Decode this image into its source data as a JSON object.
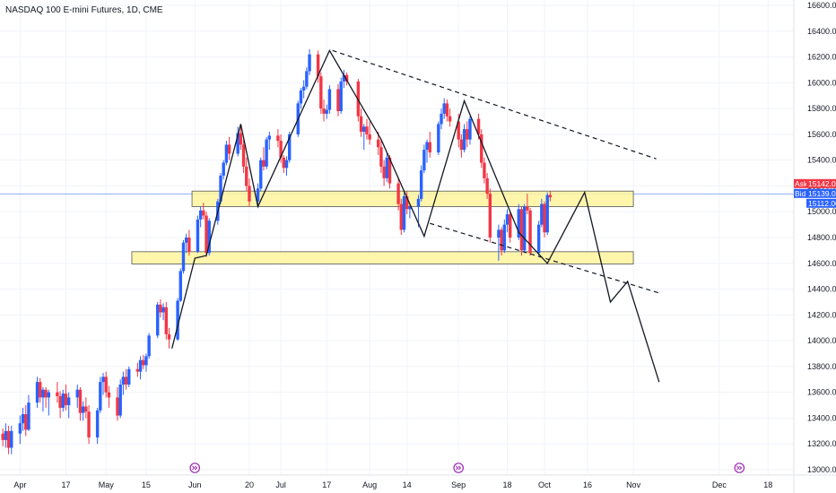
{
  "header": {
    "title": "NASDAQ 100 E-mini Futures, 1D, CME"
  },
  "quotes": {
    "ask_label": "Ask",
    "ask_price": "15142.00",
    "bid_label": "Bid",
    "bid_price": "15139.00",
    "last_price": "15112.00",
    "colors": {
      "ask": "#f23645",
      "bid": "#2962ff",
      "last": "#2962ff"
    }
  },
  "chart_data": {
    "type": "candlestick",
    "title": "NASDAQ 100 E-mini Futures, 1D, CME",
    "x_ticks": [
      {
        "label": "Apr",
        "day": 0
      },
      {
        "label": "17",
        "day": 16
      },
      {
        "label": "May",
        "day": 30
      },
      {
        "label": "15",
        "day": 44
      },
      {
        "label": "Jun",
        "day": 61
      },
      {
        "label": "20",
        "day": 80
      },
      {
        "label": "Jul",
        "day": 91
      },
      {
        "label": "17",
        "day": 107
      },
      {
        "label": "Aug",
        "day": 122
      },
      {
        "label": "14",
        "day": 135
      },
      {
        "label": "Sep",
        "day": 153
      },
      {
        "label": "18",
        "day": 170
      },
      {
        "label": "Oct",
        "day": 183
      },
      {
        "label": "16",
        "day": 198
      },
      {
        "label": "Nov",
        "day": 214
      },
      {
        "label": "Dec",
        "day": 244
      },
      {
        "label": "18",
        "day": 261
      }
    ],
    "x_range_days": [
      -7,
      270
    ],
    "y_ticks": [
      13000,
      13200,
      13400,
      13600,
      13800,
      14000,
      14200,
      14400,
      14600,
      14800,
      15000,
      15200,
      15400,
      15600,
      15800,
      16000,
      16200,
      16400,
      16600
    ],
    "ylim": [
      12950,
      16650
    ],
    "grid": true,
    "colors": {
      "up": "#2962ff",
      "down": "#f23645",
      "zone_fill": "#fff59d",
      "zone_border": "#555555",
      "price_line": "#2962ff"
    },
    "price_line": 15139,
    "zones": [
      {
        "from_day": 60,
        "to_day": 214,
        "low": 15040,
        "high": 15160
      },
      {
        "from_day": 39,
        "to_day": 214,
        "low": 14595,
        "high": 14690
      }
    ],
    "swing_path": [
      [
        53,
        13940
      ],
      [
        61,
        14640
      ],
      [
        65,
        14660
      ],
      [
        77,
        15680
      ],
      [
        83,
        15040
      ],
      [
        108,
        16250
      ],
      [
        126,
        15560
      ],
      [
        141,
        14810
      ],
      [
        155,
        15860
      ],
      [
        174,
        14840
      ],
      [
        184,
        14600
      ],
      [
        197,
        15150
      ],
      [
        206,
        14300
      ],
      [
        212,
        14460
      ],
      [
        223,
        13680
      ]
    ],
    "dashed_lines": [
      [
        [
          109,
          16250
        ],
        [
          222,
          15410
        ]
      ],
      [
        [
          143,
          14910
        ],
        [
          223,
          14370
        ]
      ]
    ],
    "candles": [
      {
        "d": -6,
        "o": 13280,
        "h": 13320,
        "l": 13180,
        "c": 13230
      },
      {
        "d": -5,
        "o": 13230,
        "h": 13360,
        "l": 13170,
        "c": 13300
      },
      {
        "d": -4,
        "o": 13300,
        "h": 13340,
        "l": 13120,
        "c": 13170
      },
      {
        "d": -3,
        "o": 13170,
        "h": 13340,
        "l": 13120,
        "c": 13300
      },
      {
        "d": 0,
        "o": 13280,
        "h": 13420,
        "l": 13200,
        "c": 13360
      },
      {
        "d": 1,
        "o": 13360,
        "h": 13480,
        "l": 13300,
        "c": 13430
      },
      {
        "d": 2,
        "o": 13430,
        "h": 13500,
        "l": 13260,
        "c": 13310
      },
      {
        "d": 3,
        "o": 13310,
        "h": 13580,
        "l": 13300,
        "c": 13520
      },
      {
        "d": 6,
        "o": 13520,
        "h": 13720,
        "l": 13480,
        "c": 13680
      },
      {
        "d": 7,
        "o": 13680,
        "h": 13710,
        "l": 13520,
        "c": 13560
      },
      {
        "d": 8,
        "o": 13560,
        "h": 13640,
        "l": 13450,
        "c": 13620
      },
      {
        "d": 9,
        "o": 13620,
        "h": 13640,
        "l": 13480,
        "c": 13560
      },
      {
        "d": 10,
        "o": 13560,
        "h": 13620,
        "l": 13420,
        "c": 13600
      },
      {
        "d": 13,
        "o": 13600,
        "h": 13680,
        "l": 13520,
        "c": 13570
      },
      {
        "d": 14,
        "o": 13570,
        "h": 13610,
        "l": 13400,
        "c": 13480
      },
      {
        "d": 15,
        "o": 13480,
        "h": 13620,
        "l": 13450,
        "c": 13590
      },
      {
        "d": 16,
        "o": 13590,
        "h": 13660,
        "l": 13460,
        "c": 13500
      },
      {
        "d": 17,
        "o": 13500,
        "h": 13600,
        "l": 13400,
        "c": 13560
      },
      {
        "d": 20,
        "o": 13560,
        "h": 13660,
        "l": 13480,
        "c": 13620
      },
      {
        "d": 21,
        "o": 13620,
        "h": 13640,
        "l": 13380,
        "c": 13440
      },
      {
        "d": 22,
        "o": 13440,
        "h": 13530,
        "l": 13380,
        "c": 13490
      },
      {
        "d": 23,
        "o": 13490,
        "h": 13560,
        "l": 13400,
        "c": 13450
      },
      {
        "d": 24,
        "o": 13450,
        "h": 13500,
        "l": 13200,
        "c": 13250
      },
      {
        "d": 27,
        "o": 13250,
        "h": 13480,
        "l": 13200,
        "c": 13460
      },
      {
        "d": 28,
        "o": 13460,
        "h": 13720,
        "l": 13440,
        "c": 13680
      },
      {
        "d": 29,
        "o": 13680,
        "h": 13750,
        "l": 13580,
        "c": 13720
      },
      {
        "d": 30,
        "o": 13720,
        "h": 13760,
        "l": 13560,
        "c": 13600
      },
      {
        "d": 31,
        "o": 13600,
        "h": 13650,
        "l": 13480,
        "c": 13560
      },
      {
        "d": 34,
        "o": 13560,
        "h": 13640,
        "l": 13380,
        "c": 13420
      },
      {
        "d": 35,
        "o": 13420,
        "h": 13700,
        "l": 13400,
        "c": 13660
      },
      {
        "d": 36,
        "o": 13660,
        "h": 13760,
        "l": 13580,
        "c": 13720
      },
      {
        "d": 37,
        "o": 13720,
        "h": 13780,
        "l": 13620,
        "c": 13660
      },
      {
        "d": 38,
        "o": 13660,
        "h": 13800,
        "l": 13640,
        "c": 13780
      },
      {
        "d": 41,
        "o": 13780,
        "h": 13830,
        "l": 13720,
        "c": 13760
      },
      {
        "d": 42,
        "o": 13760,
        "h": 13880,
        "l": 13700,
        "c": 13850
      },
      {
        "d": 43,
        "o": 13850,
        "h": 13890,
        "l": 13780,
        "c": 13810
      },
      {
        "d": 44,
        "o": 13810,
        "h": 13900,
        "l": 13760,
        "c": 13880
      },
      {
        "d": 45,
        "o": 13880,
        "h": 14060,
        "l": 13860,
        "c": 14040
      },
      {
        "d": 48,
        "o": 14040,
        "h": 14300,
        "l": 14020,
        "c": 14280
      },
      {
        "d": 49,
        "o": 14280,
        "h": 14320,
        "l": 14180,
        "c": 14220
      },
      {
        "d": 50,
        "o": 14220,
        "h": 14290,
        "l": 14160,
        "c": 14260
      },
      {
        "d": 51,
        "o": 14260,
        "h": 14300,
        "l": 14010,
        "c": 14050
      },
      {
        "d": 52,
        "o": 14050,
        "h": 14100,
        "l": 13940,
        "c": 14010
      },
      {
        "d": 55,
        "o": 14010,
        "h": 14330,
        "l": 14000,
        "c": 14310
      },
      {
        "d": 56,
        "o": 14310,
        "h": 14560,
        "l": 14300,
        "c": 14540
      },
      {
        "d": 57,
        "o": 14540,
        "h": 14780,
        "l": 14520,
        "c": 14760
      },
      {
        "d": 58,
        "o": 14760,
        "h": 14830,
        "l": 14680,
        "c": 14800
      },
      {
        "d": 59,
        "o": 14800,
        "h": 14860,
        "l": 14660,
        "c": 14690
      },
      {
        "d": 62,
        "o": 14690,
        "h": 14970,
        "l": 14680,
        "c": 14940
      },
      {
        "d": 63,
        "o": 14940,
        "h": 15040,
        "l": 14880,
        "c": 15010
      },
      {
        "d": 64,
        "o": 15010,
        "h": 15070,
        "l": 14940,
        "c": 14970
      },
      {
        "d": 65,
        "o": 14970,
        "h": 15000,
        "l": 14650,
        "c": 14680
      },
      {
        "d": 66,
        "o": 14680,
        "h": 14950,
        "l": 14660,
        "c": 14930
      },
      {
        "d": 69,
        "o": 14930,
        "h": 15100,
        "l": 14900,
        "c": 15080
      },
      {
        "d": 70,
        "o": 15080,
        "h": 15300,
        "l": 15060,
        "c": 15280
      },
      {
        "d": 71,
        "o": 15280,
        "h": 15400,
        "l": 15250,
        "c": 15380
      },
      {
        "d": 72,
        "o": 15380,
        "h": 15550,
        "l": 15360,
        "c": 15520
      },
      {
        "d": 73,
        "o": 15520,
        "h": 15580,
        "l": 15400,
        "c": 15450
      },
      {
        "d": 76,
        "o": 15450,
        "h": 15660,
        "l": 15430,
        "c": 15610
      },
      {
        "d": 77,
        "o": 15610,
        "h": 15680,
        "l": 15480,
        "c": 15520
      },
      {
        "d": 78,
        "o": 15520,
        "h": 15560,
        "l": 15300,
        "c": 15350
      },
      {
        "d": 79,
        "o": 15350,
        "h": 15420,
        "l": 15160,
        "c": 15200
      },
      {
        "d": 80,
        "o": 15200,
        "h": 15260,
        "l": 15040,
        "c": 15080
      },
      {
        "d": 83,
        "o": 15080,
        "h": 15220,
        "l": 15050,
        "c": 15180
      },
      {
        "d": 84,
        "o": 15180,
        "h": 15420,
        "l": 15160,
        "c": 15400
      },
      {
        "d": 85,
        "o": 15400,
        "h": 15500,
        "l": 15320,
        "c": 15350
      },
      {
        "d": 86,
        "o": 15350,
        "h": 15580,
        "l": 15330,
        "c": 15560
      },
      {
        "d": 87,
        "o": 15560,
        "h": 15620,
        "l": 15480,
        "c": 15590
      },
      {
        "d": 90,
        "o": 15590,
        "h": 15640,
        "l": 15500,
        "c": 15550
      },
      {
        "d": 91,
        "o": 15550,
        "h": 15600,
        "l": 15380,
        "c": 15420
      },
      {
        "d": 92,
        "o": 15420,
        "h": 15440,
        "l": 15300,
        "c": 15340
      },
      {
        "d": 93,
        "o": 15340,
        "h": 15430,
        "l": 15280,
        "c": 15400
      },
      {
        "d": 94,
        "o": 15400,
        "h": 15620,
        "l": 15380,
        "c": 15600
      },
      {
        "d": 97,
        "o": 15600,
        "h": 15860,
        "l": 15580,
        "c": 15840
      },
      {
        "d": 98,
        "o": 15840,
        "h": 15960,
        "l": 15800,
        "c": 15940
      },
      {
        "d": 99,
        "o": 15940,
        "h": 16020,
        "l": 15880,
        "c": 15970
      },
      {
        "d": 100,
        "o": 15970,
        "h": 16120,
        "l": 15950,
        "c": 16090
      },
      {
        "d": 101,
        "o": 16090,
        "h": 16260,
        "l": 16060,
        "c": 16220
      },
      {
        "d": 104,
        "o": 16220,
        "h": 16250,
        "l": 16000,
        "c": 16050
      },
      {
        "d": 105,
        "o": 16050,
        "h": 16080,
        "l": 15760,
        "c": 15800
      },
      {
        "d": 106,
        "o": 15800,
        "h": 15870,
        "l": 15700,
        "c": 15760
      },
      {
        "d": 107,
        "o": 15760,
        "h": 15830,
        "l": 15720,
        "c": 15790
      },
      {
        "d": 108,
        "o": 15790,
        "h": 15980,
        "l": 15760,
        "c": 15950
      },
      {
        "d": 111,
        "o": 15950,
        "h": 15990,
        "l": 15740,
        "c": 15780
      },
      {
        "d": 112,
        "o": 15780,
        "h": 16040,
        "l": 15760,
        "c": 16010
      },
      {
        "d": 113,
        "o": 16010,
        "h": 16100,
        "l": 15960,
        "c": 16060
      },
      {
        "d": 114,
        "o": 16060,
        "h": 16080,
        "l": 15980,
        "c": 16010
      },
      {
        "d": 118,
        "o": 16010,
        "h": 16030,
        "l": 15700,
        "c": 15740
      },
      {
        "d": 119,
        "o": 15740,
        "h": 15800,
        "l": 15580,
        "c": 15620
      },
      {
        "d": 120,
        "o": 15620,
        "h": 15680,
        "l": 15480,
        "c": 15660
      },
      {
        "d": 121,
        "o": 15660,
        "h": 15720,
        "l": 15560,
        "c": 15600
      },
      {
        "d": 122,
        "o": 15600,
        "h": 15700,
        "l": 15520,
        "c": 15560
      },
      {
        "d": 125,
        "o": 15560,
        "h": 15620,
        "l": 15440,
        "c": 15500
      },
      {
        "d": 126,
        "o": 15500,
        "h": 15560,
        "l": 15300,
        "c": 15350
      },
      {
        "d": 127,
        "o": 15350,
        "h": 15400,
        "l": 15200,
        "c": 15260
      },
      {
        "d": 128,
        "o": 15260,
        "h": 15460,
        "l": 15230,
        "c": 15420
      },
      {
        "d": 129,
        "o": 15420,
        "h": 15440,
        "l": 15180,
        "c": 15220
      },
      {
        "d": 132,
        "o": 15220,
        "h": 15260,
        "l": 15010,
        "c": 15060
      },
      {
        "d": 133,
        "o": 15060,
        "h": 15100,
        "l": 14820,
        "c": 14860
      },
      {
        "d": 134,
        "o": 14860,
        "h": 15150,
        "l": 14840,
        "c": 15120
      },
      {
        "d": 135,
        "o": 15120,
        "h": 15160,
        "l": 14980,
        "c": 15020
      },
      {
        "d": 136,
        "o": 15020,
        "h": 15060,
        "l": 14950,
        "c": 15040
      },
      {
        "d": 139,
        "o": 15040,
        "h": 15130,
        "l": 14880,
        "c": 15100
      },
      {
        "d": 140,
        "o": 15100,
        "h": 15360,
        "l": 15080,
        "c": 15320
      },
      {
        "d": 141,
        "o": 15320,
        "h": 15520,
        "l": 15300,
        "c": 15480
      },
      {
        "d": 142,
        "o": 15480,
        "h": 15560,
        "l": 15380,
        "c": 15540
      },
      {
        "d": 143,
        "o": 15540,
        "h": 15620,
        "l": 15420,
        "c": 15460
      },
      {
        "d": 146,
        "o": 15460,
        "h": 15700,
        "l": 15440,
        "c": 15680
      },
      {
        "d": 147,
        "o": 15680,
        "h": 15800,
        "l": 15640,
        "c": 15760
      },
      {
        "d": 148,
        "o": 15760,
        "h": 15880,
        "l": 15720,
        "c": 15840
      },
      {
        "d": 149,
        "o": 15840,
        "h": 15870,
        "l": 15700,
        "c": 15740
      },
      {
        "d": 150,
        "o": 15740,
        "h": 15800,
        "l": 15660,
        "c": 15700
      },
      {
        "d": 153,
        "o": 15700,
        "h": 15760,
        "l": 15500,
        "c": 15560
      },
      {
        "d": 154,
        "o": 15560,
        "h": 15600,
        "l": 15420,
        "c": 15480
      },
      {
        "d": 155,
        "o": 15480,
        "h": 15680,
        "l": 15460,
        "c": 15640
      },
      {
        "d": 156,
        "o": 15640,
        "h": 15700,
        "l": 15500,
        "c": 15560
      },
      {
        "d": 157,
        "o": 15560,
        "h": 15740,
        "l": 15520,
        "c": 15720
      },
      {
        "d": 160,
        "o": 15720,
        "h": 15760,
        "l": 15560,
        "c": 15600
      },
      {
        "d": 161,
        "o": 15600,
        "h": 15640,
        "l": 15340,
        "c": 15380
      },
      {
        "d": 162,
        "o": 15380,
        "h": 15420,
        "l": 15220,
        "c": 15260
      },
      {
        "d": 163,
        "o": 15260,
        "h": 15300,
        "l": 15100,
        "c": 15140
      },
      {
        "d": 164,
        "o": 15140,
        "h": 15180,
        "l": 14760,
        "c": 14800
      },
      {
        "d": 167,
        "o": 14800,
        "h": 14900,
        "l": 14620,
        "c": 14860
      },
      {
        "d": 168,
        "o": 14860,
        "h": 14880,
        "l": 14660,
        "c": 14700
      },
      {
        "d": 169,
        "o": 14700,
        "h": 14940,
        "l": 14680,
        "c": 14900
      },
      {
        "d": 170,
        "o": 14900,
        "h": 15020,
        "l": 14840,
        "c": 14980
      },
      {
        "d": 171,
        "o": 14980,
        "h": 15000,
        "l": 14760,
        "c": 14800
      },
      {
        "d": 174,
        "o": 14800,
        "h": 15060,
        "l": 14780,
        "c": 15020
      },
      {
        "d": 175,
        "o": 15020,
        "h": 15040,
        "l": 14660,
        "c": 14700
      },
      {
        "d": 176,
        "o": 14700,
        "h": 15060,
        "l": 14680,
        "c": 15040
      },
      {
        "d": 177,
        "o": 15040,
        "h": 15140,
        "l": 14980,
        "c": 15010
      },
      {
        "d": 178,
        "o": 15010,
        "h": 15030,
        "l": 14660,
        "c": 14680
      },
      {
        "d": 181,
        "o": 14680,
        "h": 14930,
        "l": 14660,
        "c": 14900
      },
      {
        "d": 182,
        "o": 14900,
        "h": 15100,
        "l": 14880,
        "c": 15060
      },
      {
        "d": 183,
        "o": 15060,
        "h": 15080,
        "l": 14800,
        "c": 14840
      },
      {
        "d": 184,
        "o": 14840,
        "h": 15150,
        "l": 14820,
        "c": 15130
      },
      {
        "d": 185,
        "o": 15130,
        "h": 15160,
        "l": 15080,
        "c": 15112
      }
    ]
  }
}
